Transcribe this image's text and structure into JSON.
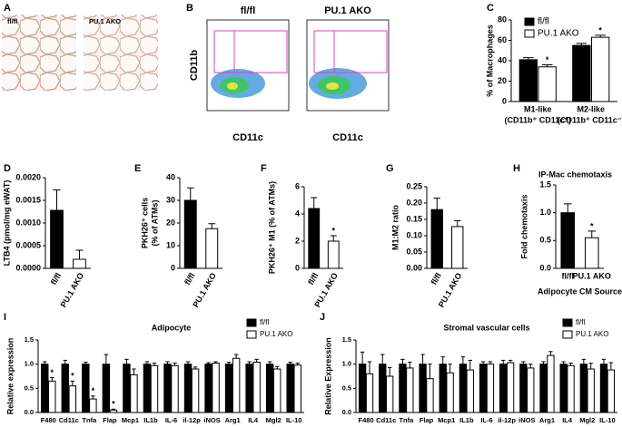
{
  "panel_labels": [
    "A",
    "B",
    "C",
    "D",
    "E",
    "F",
    "G",
    "H",
    "I",
    "J"
  ],
  "histology": {
    "labels": [
      "fl/fl",
      "PU.1 AKO"
    ]
  },
  "flow": {
    "labels": [
      "fl/fl",
      "PU.1 AKO"
    ],
    "y_label": "CD11b",
    "x_label": "CD11c"
  },
  "chart_data": [
    {
      "type": "bar",
      "ylabel": [
        "% of Macrophages"
      ],
      "categories": [
        "M1-like",
        "M2-like"
      ],
      "category_sublabels": [
        "(CD11b⁺ CD11c⁺)",
        "(CD11b⁺ CD11c⁻)"
      ],
      "series": [
        {
          "name": "fl/fl",
          "color": "#000000",
          "values": [
            41,
            55
          ],
          "errors": [
            2,
            2
          ]
        },
        {
          "name": "PU.1 AKO",
          "color": "#ffffff",
          "values": [
            34,
            63
          ],
          "errors": [
            2,
            2
          ],
          "sig_labels": [
            "*",
            "*"
          ]
        }
      ],
      "ylim": [
        0,
        80
      ],
      "yticks": [
        0,
        20,
        40,
        60,
        80
      ]
    },
    {
      "type": "bar",
      "ylabel": [
        "LTB4 (pmol/mg eWAT)"
      ],
      "categories": [
        "fl/fl",
        "PU.1 AKO"
      ],
      "values": [
        0.00128,
        0.0002
      ],
      "errors": [
        0.00045,
        0.0002
      ],
      "colors": [
        "#000000",
        "#ffffff"
      ],
      "ylim": [
        0,
        0.002
      ],
      "yticks": [
        {
          "value": 0,
          "label": "0.0000"
        },
        {
          "value": 0.0005,
          "label": "0.0005"
        },
        {
          "value": 0.001,
          "label": "0.0010"
        },
        {
          "value": 0.0015,
          "label": "0.0015"
        },
        {
          "value": 0.002,
          "label": "0.0020"
        }
      ]
    },
    {
      "type": "bar",
      "ylabel": [
        "PKH26⁺ cells",
        "(% of ATMs)"
      ],
      "categories": [
        "fl/fl",
        "PU.1 AKO"
      ],
      "values": [
        30,
        17.5
      ],
      "errors": [
        5.5,
        2.2
      ],
      "colors": [
        "#000000",
        "#ffffff"
      ],
      "ylim": [
        0,
        40
      ],
      "yticks": [
        0,
        10,
        20,
        30,
        40
      ]
    },
    {
      "type": "bar",
      "ylabel": [
        "PKH26⁺ M1 (% of ATMs)"
      ],
      "categories": [
        "fl/fl",
        "PU.1 AKO"
      ],
      "values": [
        4.4,
        2.0
      ],
      "errors": [
        0.8,
        0.4
      ],
      "colors": [
        "#000000",
        "#ffffff"
      ],
      "sig_labels": [
        null,
        "*"
      ],
      "ylim": [
        0,
        6
      ],
      "yticks": [
        0,
        2,
        4,
        6
      ]
    },
    {
      "type": "bar",
      "ylabel": [
        "M1:M2 ratio"
      ],
      "categories": [
        "fl/fl",
        "PU.1 AKO"
      ],
      "values": [
        0.18,
        0.128
      ],
      "errors": [
        0.035,
        0.018
      ],
      "colors": [
        "#000000",
        "#ffffff"
      ],
      "ylim": [
        0,
        0.25
      ],
      "yticks": [
        {
          "value": 0,
          "label": "0.00"
        },
        {
          "value": 0.05,
          "label": "0.05"
        },
        {
          "value": 0.1,
          "label": "0.10"
        },
        {
          "value": 0.15,
          "label": "0.15"
        },
        {
          "value": 0.2,
          "label": "0.20"
        },
        {
          "value": 0.25,
          "label": "0.25"
        }
      ]
    },
    {
      "type": "bar",
      "title": "IP-Mac chemotaxis",
      "ylabel": [
        "Fold chemotaxis"
      ],
      "xlabel": "Adipocyte CM Source",
      "categories": [
        "fl/fl",
        "PU.1 AKO"
      ],
      "values": [
        1.0,
        0.55
      ],
      "errors": [
        0.16,
        0.12
      ],
      "colors": [
        "#000000",
        "#ffffff"
      ],
      "sig_labels": [
        null,
        "*"
      ],
      "ylim": [
        0,
        1.5
      ],
      "yticks": [
        {
          "value": 0,
          "label": "0.0"
        },
        {
          "value": 0.5,
          "label": "0.5"
        },
        {
          "value": 1,
          "label": "1.0"
        },
        {
          "value": 1.5,
          "label": "1.5"
        }
      ]
    },
    {
      "type": "bar",
      "title": "Adipocyte",
      "ylabel": [
        "Relative expression"
      ],
      "categories": [
        "F480",
        "Cd11c",
        "Tnfa",
        "Flap",
        "Mcp1",
        "IL1b",
        "IL-6",
        "il-12p",
        "iNOS",
        "Arg1",
        "IL4",
        "Mgl2",
        "IL-10"
      ],
      "series": [
        {
          "name": "fl/fl",
          "color": "#000000",
          "values": [
            1,
            1,
            1,
            1,
            1,
            1,
            1,
            1,
            1,
            1,
            1,
            1,
            1
          ],
          "errors": [
            0.05,
            0.08,
            0.04,
            0.2,
            0.1,
            0.05,
            0.05,
            0.05,
            0.03,
            0.04,
            0.05,
            0.05,
            0.04
          ]
        },
        {
          "name": "PU.1 AKO",
          "color": "#ffffff",
          "values": [
            0.65,
            0.55,
            0.28,
            0.05,
            0.78,
            0.97,
            0.97,
            0.9,
            1.02,
            1.12,
            1.04,
            0.9,
            0.98
          ],
          "errors": [
            0.07,
            0.1,
            0.06,
            0.02,
            0.12,
            0.05,
            0.05,
            0.04,
            0.03,
            0.08,
            0.06,
            0.05,
            0.04
          ],
          "sig_labels": [
            "*",
            "*",
            "*",
            "*",
            null,
            null,
            null,
            null,
            null,
            null,
            null,
            null,
            null
          ]
        }
      ],
      "ylim": [
        0,
        1.5
      ],
      "yticks": [
        {
          "value": 0,
          "label": "0.0"
        },
        {
          "value": 0.5,
          "label": "0.5"
        },
        {
          "value": 1,
          "label": "1.0"
        },
        {
          "value": 1.5,
          "label": "1.5"
        }
      ]
    },
    {
      "type": "bar",
      "title": "Stromal vascular cells",
      "ylabel": [
        "Relative Expression"
      ],
      "categories": [
        "F480",
        "Cd11c",
        "Tnfa",
        "Flap",
        "Mcp1",
        "IL1b",
        "IL-6",
        "il-12p",
        "iNOS",
        "Arg1",
        "IL4",
        "Mgl2",
        "IL-10"
      ],
      "series": [
        {
          "name": "fl/fl",
          "color": "#000000",
          "values": [
            1,
            1,
            1,
            1,
            1,
            1,
            1,
            1,
            1,
            1,
            1,
            1,
            1
          ],
          "errors": [
            0.25,
            0.2,
            0.1,
            0.2,
            0.15,
            0.15,
            0.05,
            0.08,
            0.05,
            0.05,
            0.05,
            0.1,
            0.1
          ]
        },
        {
          "name": "PU.1 AKO",
          "color": "#ffffff",
          "values": [
            0.8,
            0.75,
            0.92,
            0.7,
            0.82,
            0.88,
            1.0,
            1.03,
            0.92,
            1.18,
            0.97,
            0.9,
            0.88
          ],
          "errors": [
            0.25,
            0.18,
            0.12,
            0.3,
            0.18,
            0.2,
            0.05,
            0.05,
            0.08,
            0.08,
            0.05,
            0.12,
            0.15
          ]
        }
      ],
      "ylim": [
        0,
        1.5
      ],
      "yticks": [
        {
          "value": 0,
          "label": "0.0"
        },
        {
          "value": 0.5,
          "label": "0.5"
        },
        {
          "value": 1,
          "label": "1.0"
        },
        {
          "value": 1.5,
          "label": "1.5"
        }
      ]
    }
  ]
}
